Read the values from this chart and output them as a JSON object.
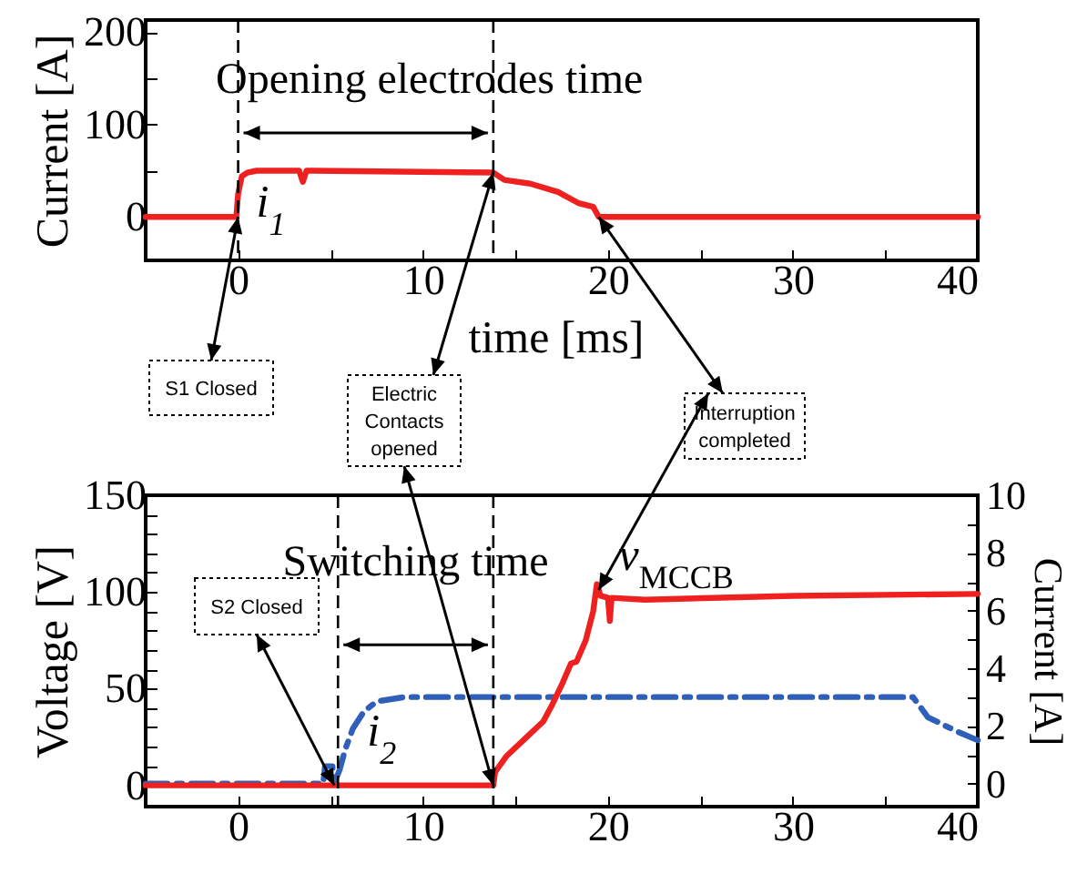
{
  "chart_data": [
    {
      "type": "line",
      "xlabel": "time [ms]",
      "ylabel": "Current [A]",
      "xlim": [
        -5,
        40
      ],
      "ylim": [
        -47,
        213
      ],
      "xticks": [
        0,
        {
          "value": 5,
          "label": null
        },
        10,
        {
          "value": 15,
          "label": null
        },
        20,
        {
          "value": 25,
          "label": null
        },
        30,
        {
          "value": 35,
          "label": null
        },
        40
      ],
      "yticks": [
        0,
        {
          "value": 50,
          "label": null
        },
        100,
        {
          "value": 150,
          "label": null
        },
        200
      ],
      "marker": "none",
      "series": [
        {
          "name": "i$_{1}$",
          "color": "#ee2020",
          "line_style": "solid",
          "x": [
            -5,
            -0.1,
            0,
            0.2,
            0.5,
            1,
            3.3,
            3.5,
            3.7,
            4,
            13.8,
            14.4,
            15.8,
            17.3,
            18.4,
            19.2,
            19.5,
            20,
            30,
            40
          ],
          "values": [
            0,
            0,
            25,
            44,
            48,
            50,
            50,
            38,
            50,
            50,
            48,
            40,
            36,
            27,
            15,
            11,
            0,
            0,
            0,
            0
          ]
        }
      ],
      "ref_lines": [
        {
          "axis": "x",
          "value": 0,
          "color": "#000000",
          "line_style": "dashed"
        },
        {
          "axis": "x",
          "value": 13.8,
          "color": "#000000",
          "line_style": "dashed"
        }
      ],
      "annotations": [
        "Opening electrodes time",
        {
          "text": "S1 Closed",
          "x": 0,
          "y": 0
        },
        {
          "text": "Electric Contacts opened",
          "x": 13.8,
          "y": 48
        },
        {
          "text": "Interruption completed",
          "x": 19.5,
          "y": 0
        }
      ]
    },
    {
      "type": "line",
      "ylabel": "Voltage [V]",
      "y2label": "Current [A]",
      "xlim": [
        -5,
        40
      ],
      "ylim": [
        -11,
        150
      ],
      "y2lim": [
        -0.8,
        10
      ],
      "xticks": [
        0,
        {
          "value": 5,
          "label": null
        },
        10,
        {
          "value": 15,
          "label": null
        },
        20,
        {
          "value": 25,
          "label": null
        },
        30,
        {
          "value": 35,
          "label": null
        },
        40
      ],
      "yticks": [
        0,
        {
          "value": 10,
          "label": null
        },
        {
          "value": 20,
          "label": null
        },
        {
          "value": 30,
          "label": null
        },
        {
          "value": 40,
          "label": null
        },
        50,
        {
          "value": 60,
          "label": null
        },
        {
          "value": 70,
          "label": null
        },
        {
          "value": 80,
          "label": null
        },
        {
          "value": 90,
          "label": null
        },
        100,
        {
          "value": 110,
          "label": null
        },
        {
          "value": 120,
          "label": null
        },
        {
          "value": 130,
          "label": null
        },
        {
          "value": 140,
          "label": null
        },
        150
      ],
      "y2ticks": [
        0,
        {
          "value": 1,
          "label": null
        },
        2,
        {
          "value": 3,
          "label": null
        },
        4,
        {
          "value": 5,
          "label": null
        },
        6,
        {
          "value": 7,
          "label": null
        },
        8,
        {
          "value": 9,
          "label": null
        },
        10
      ],
      "marker": "none",
      "series": [
        {
          "name": "i$_{2}$",
          "color": "#2f5fb8",
          "line_style": "dashed",
          "axis": "y2",
          "x": [
            -5,
            4.6,
            4.7,
            5.1,
            5.2,
            5.5,
            5.8,
            6.2,
            6.8,
            7.5,
            9,
            36.5,
            37.3,
            38.9,
            40
          ],
          "values": [
            0,
            0,
            0.6,
            0.6,
            0,
            0.5,
            1.2,
            1.9,
            2.5,
            2.85,
            3,
            3,
            2.3,
            1.8,
            1.5
          ]
        },
        {
          "name": "v$_{MCCB}$",
          "color": "#ee2020",
          "line_style": "solid",
          "x": [
            -5,
            13.8,
            13.9,
            14.5,
            15.5,
            16.5,
            17,
            17.5,
            18,
            18.3,
            18.8,
            19.2,
            19.4,
            19.6,
            20,
            20.1,
            20.2,
            22,
            30,
            40
          ],
          "values": [
            0,
            0,
            7,
            15,
            24,
            33,
            42,
            52,
            63,
            64,
            75,
            90,
            104,
            98,
            97,
            85,
            97,
            96,
            98,
            99
          ]
        }
      ],
      "ref_lines": [
        {
          "axis": "x",
          "value": 5.4,
          "color": "#000000",
          "line_style": "dashed"
        },
        {
          "axis": "x",
          "value": 13.8,
          "color": "#000000",
          "line_style": "dashed"
        }
      ],
      "annotations": [
        "Switching time",
        {
          "text": "S2 Closed",
          "x": 5.2,
          "y": 0
        }
      ]
    }
  ]
}
